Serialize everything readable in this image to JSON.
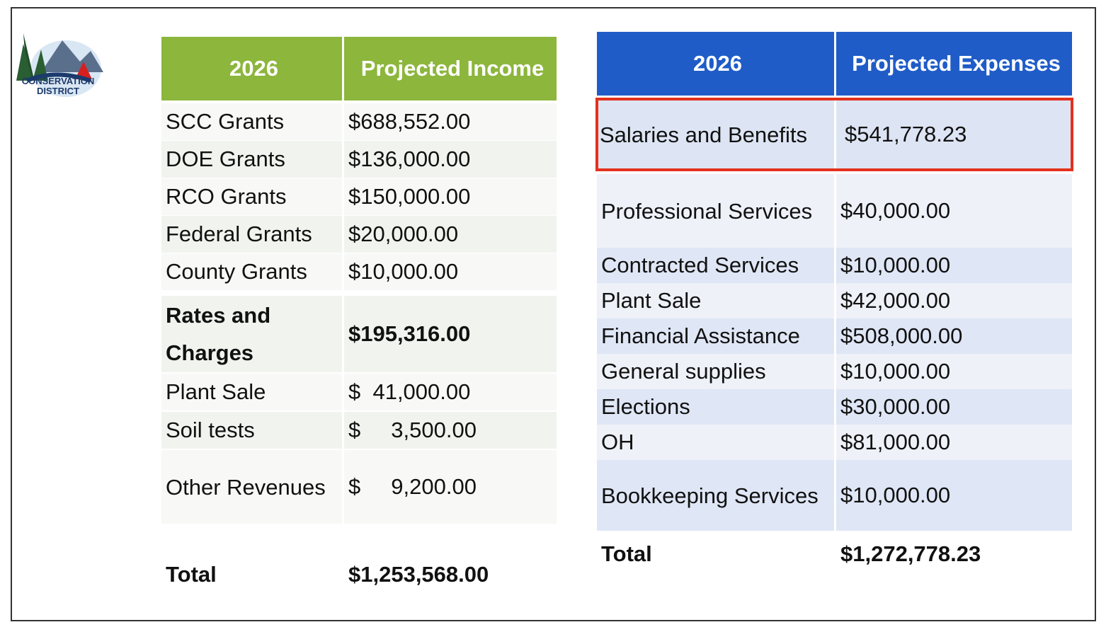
{
  "logo": {
    "line1": "CONSERVATION",
    "line2": "DISTRICT"
  },
  "income": {
    "header": [
      "2026",
      "Projected Income"
    ],
    "rows": [
      [
        "SCC Grants",
        "$688,552.00"
      ],
      [
        "DOE Grants",
        "$136,000.00"
      ],
      [
        "RCO Grants",
        "$150,000.00"
      ],
      [
        "Federal Grants",
        "$20,000.00"
      ],
      [
        "County Grants",
        "$10,000.00"
      ],
      [
        "Rates and Charges",
        "$195,316.00"
      ],
      [
        "Plant Sale",
        "$  41,000.00"
      ],
      [
        "Soil tests",
        "$     3,500.00"
      ],
      [
        "Other Revenues",
        "$     9,200.00"
      ]
    ],
    "total": [
      "Total",
      "$1,253,568.00"
    ]
  },
  "expenses": {
    "header": [
      "2026",
      "Projected Expenses"
    ],
    "rows": [
      [
        "Salaries and Benefits",
        "$541,778.23"
      ],
      [
        "Professional Services",
        "$40,000.00"
      ],
      [
        "Contracted Services",
        "$10,000.00"
      ],
      [
        "Plant Sale",
        "$42,000.00"
      ],
      [
        "Financial Assistance",
        "$508,000.00"
      ],
      [
        "General supplies",
        "$10,000.00"
      ],
      [
        "Elections",
        "$30,000.00"
      ],
      [
        "OH",
        "$81,000.00"
      ],
      [
        "Bookkeeping Services",
        "$10,000.00"
      ]
    ],
    "total": [
      "Total",
      "$1,272,778.23"
    ]
  }
}
